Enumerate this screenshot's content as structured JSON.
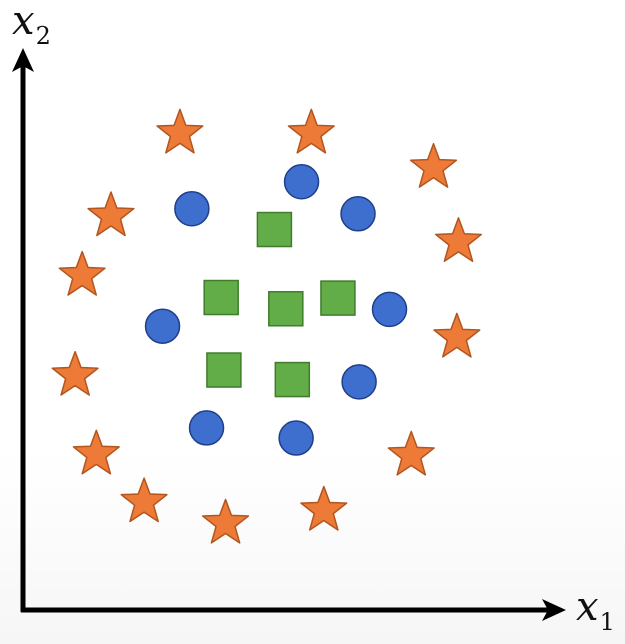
{
  "axes": {
    "x_label": "x",
    "x_subscript": "1",
    "y_label": "x",
    "y_subscript": "2"
  },
  "colors": {
    "axis": "#000000",
    "star_fill": "#ee7a37",
    "star_stroke": "#b2551f",
    "circle_fill": "#3f6fce",
    "circle_stroke": "#1f3f8a",
    "square_fill": "#63ad48",
    "square_stroke": "#3f7d2b"
  },
  "chart_data": {
    "type": "scatter",
    "grid": false,
    "xlim": [
      0,
      100
    ],
    "ylim": [
      0,
      100
    ],
    "series": [
      {
        "marker": "star",
        "points": [
          [
            28.9,
            84.8
          ],
          [
            53.1,
            84.8
          ],
          [
            75.6,
            78.7
          ],
          [
            16.2,
            70.1
          ],
          [
            80.2,
            65.5
          ],
          [
            10.9,
            59.5
          ],
          [
            9.6,
            41.7
          ],
          [
            79.9,
            48.5
          ],
          [
            13.5,
            27.7
          ],
          [
            22.3,
            19.2
          ],
          [
            37.3,
            15.4
          ],
          [
            55.4,
            17.7
          ],
          [
            71.5,
            27.5
          ]
        ]
      },
      {
        "marker": "circle",
        "points": [
          [
            51.3,
            76.2
          ],
          [
            31.1,
            71.4
          ],
          [
            61.7,
            70.5
          ],
          [
            25.7,
            50.5
          ],
          [
            67.5,
            53.5
          ],
          [
            61.9,
            40.6
          ],
          [
            33.8,
            32.4
          ],
          [
            50.3,
            30.6
          ]
        ]
      },
      {
        "marker": "square",
        "points": [
          [
            46.3,
            67.7
          ],
          [
            36.5,
            55.6
          ],
          [
            48.4,
            53.6
          ],
          [
            58.0,
            55.5
          ],
          [
            37.0,
            42.7
          ],
          [
            49.6,
            41.0
          ]
        ]
      }
    ]
  }
}
